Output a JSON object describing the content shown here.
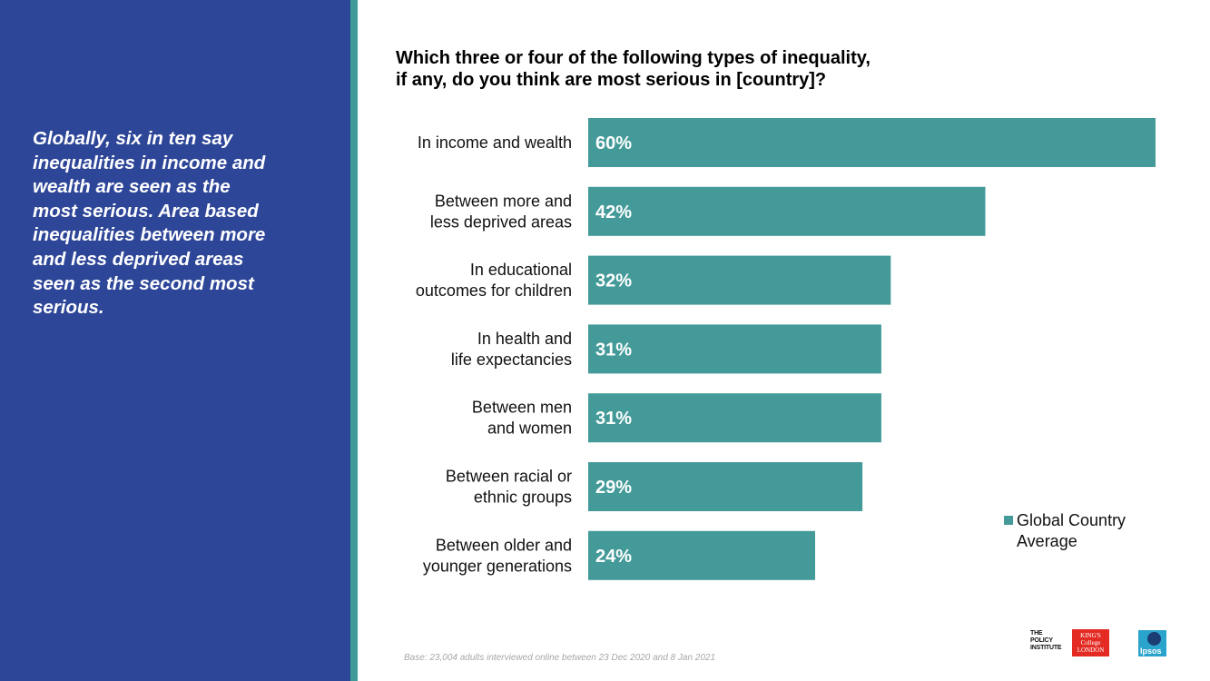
{
  "summary": "Globally, six in ten say\ninequalities in income and\nwealth are seen as the\nmost serious.  Area based\ninequalities between more\nand less deprived areas\nseen as the second most\nserious.",
  "legend_label": "Global Country\nAverage",
  "base_note": "Base: 23,004 adults interviewed online between 23 Dec 2020 and 8 Jan 2021",
  "logos": {
    "policy_institute": "THE\nPOLICY\nINSTITUTE",
    "kings": "KING'S\nCollege\nLONDON",
    "ipsos": "Ipsos"
  },
  "colors": {
    "left_panel": "#2e4698",
    "accent": "#3f9b98",
    "bar": "#439a98"
  },
  "chart_data": {
    "type": "bar",
    "orientation": "horizontal",
    "title": "Which three or four of the following types of inequality,\nif any, do you think are most serious in [country]?",
    "categories": [
      "In income and wealth",
      "Between more and\nless deprived areas",
      "In educational\noutcomes for children",
      "In health and\nlife expectancies",
      "Between men\nand women",
      "Between racial or\nethnic groups",
      "Between older and\nyounger generations"
    ],
    "series": [
      {
        "name": "Global Country Average",
        "values": [
          60,
          42,
          32,
          31,
          31,
          29,
          24
        ]
      }
    ],
    "value_labels": [
      "60%",
      "42%",
      "32%",
      "31%",
      "31%",
      "29%",
      "24%"
    ],
    "xlim": [
      0,
      60
    ],
    "xlabel": "",
    "ylabel": "",
    "legend_position": "bottom-right",
    "grid": false
  }
}
